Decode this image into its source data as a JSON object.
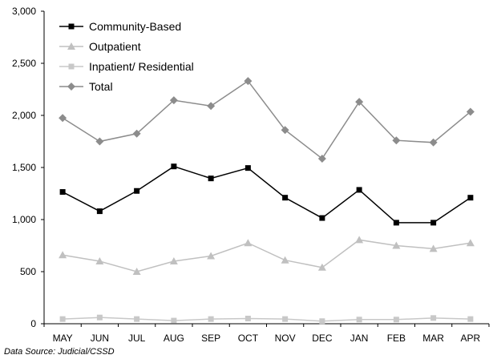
{
  "chart_data": {
    "type": "line",
    "categories": [
      "MAY",
      "JUN",
      "JUL",
      "AUG",
      "SEP",
      "OCT",
      "NOV",
      "DEC",
      "JAN",
      "FEB",
      "MAR",
      "APR"
    ],
    "ylim": [
      0,
      3000
    ],
    "yticks": [
      "0",
      "500",
      "1,000",
      "1,500",
      "2,000",
      "2,500",
      "3,000"
    ],
    "ytick_values": [
      0,
      500,
      1000,
      1500,
      2000,
      2500,
      3000
    ],
    "grid": false,
    "legend_position": "top-left",
    "series": [
      {
        "name": "Community-Based",
        "color": "#000000",
        "marker": "square",
        "values": [
          1265,
          1080,
          1275,
          1510,
          1395,
          1495,
          1210,
          1015,
          1285,
          970,
          970,
          1210
        ]
      },
      {
        "name": "Outpatient",
        "color": "#c0c0c0",
        "marker": "triangle",
        "values": [
          660,
          600,
          500,
          600,
          650,
          775,
          610,
          540,
          805,
          750,
          720,
          775
        ]
      },
      {
        "name": "Inpatient/ Residential",
        "color": "#c8c8c8",
        "marker": "square",
        "values": [
          45,
          60,
          45,
          30,
          45,
          50,
          45,
          25,
          40,
          40,
          55,
          45
        ]
      },
      {
        "name": "Total",
        "color": "#8c8c8c",
        "marker": "diamond",
        "values": [
          1975,
          1750,
          1825,
          2145,
          2090,
          2330,
          1860,
          1585,
          2130,
          1760,
          1740,
          2035
        ]
      }
    ]
  },
  "source_note": "Data Source: Judicial/CSSD"
}
